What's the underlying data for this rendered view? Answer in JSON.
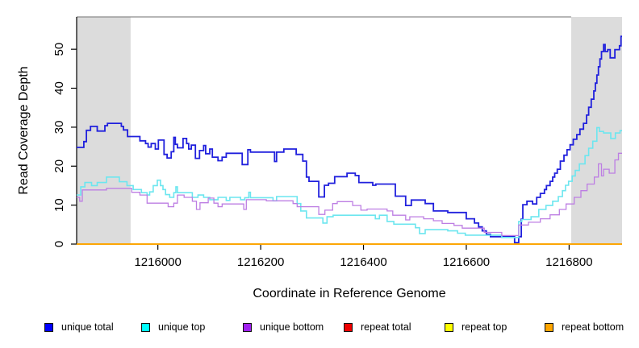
{
  "chart_data": {
    "type": "line",
    "subtype": "step-coverage",
    "title": "",
    "xlabel": "Coordinate in Reference Genome",
    "ylabel": "Read Coverage Depth",
    "xlim": [
      1215842,
      1216903
    ],
    "ylim": [
      0,
      58.3
    ],
    "x_ticks": [
      1216000,
      1216200,
      1216400,
      1216600,
      1216800
    ],
    "y_ticks": [
      0,
      10,
      20,
      30,
      40,
      50
    ],
    "grid": false,
    "legend_position": "bottom",
    "colors": {
      "background": "#ffffff",
      "shaded_region": "#dcdcdc",
      "top_border": "#8a8a8a",
      "axis": "#000000"
    },
    "shaded_regions": [
      {
        "x0": 1215842,
        "x1": 1215947
      },
      {
        "x0": 1216804,
        "x1": 1216903
      }
    ],
    "series": [
      {
        "name": "unique total",
        "line_color": "#2020dd",
        "legend_color": "#0000ff",
        "width": 1.8,
        "points": [
          [
            1215842,
            24.8
          ],
          [
            1215856,
            26.3
          ],
          [
            1215861,
            29.2
          ],
          [
            1215869,
            30.2
          ],
          [
            1215882,
            29.0
          ],
          [
            1215897,
            30.4
          ],
          [
            1215902,
            31.0
          ],
          [
            1215929,
            30.2
          ],
          [
            1215933,
            29.3
          ],
          [
            1215941,
            27.6
          ],
          [
            1215965,
            26.5
          ],
          [
            1215976,
            25.8
          ],
          [
            1215981,
            24.9
          ],
          [
            1215987,
            25.8
          ],
          [
            1215995,
            24.4
          ],
          [
            1216001,
            26.7
          ],
          [
            1216012,
            23.0
          ],
          [
            1216018,
            22.1
          ],
          [
            1216026,
            23.7
          ],
          [
            1216031,
            27.4
          ],
          [
            1216034,
            25.6
          ],
          [
            1216038,
            24.7
          ],
          [
            1216049,
            27.1
          ],
          [
            1216056,
            25.8
          ],
          [
            1216060,
            24.4
          ],
          [
            1216065,
            25.4
          ],
          [
            1216073,
            22.0
          ],
          [
            1216081,
            24.0
          ],
          [
            1216089,
            25.3
          ],
          [
            1216093,
            23.2
          ],
          [
            1216101,
            24.4
          ],
          [
            1216106,
            22.3
          ],
          [
            1216117,
            21.4
          ],
          [
            1216125,
            22.3
          ],
          [
            1216133,
            23.3
          ],
          [
            1216164,
            20.4
          ],
          [
            1216175,
            24.2
          ],
          [
            1216180,
            23.6
          ],
          [
            1216227,
            21.2
          ],
          [
            1216231,
            23.6
          ],
          [
            1216245,
            24.4
          ],
          [
            1216269,
            23.0
          ],
          [
            1216282,
            21.3
          ],
          [
            1216289,
            17.2
          ],
          [
            1216294,
            16.1
          ],
          [
            1216313,
            12.1
          ],
          [
            1216324,
            15.1
          ],
          [
            1216332,
            15.6
          ],
          [
            1216344,
            17.3
          ],
          [
            1216368,
            18.2
          ],
          [
            1216384,
            17.6
          ],
          [
            1216391,
            15.8
          ],
          [
            1216418,
            15.1
          ],
          [
            1216424,
            15.4
          ],
          [
            1216462,
            12.3
          ],
          [
            1216482,
            9.9
          ],
          [
            1216493,
            11.3
          ],
          [
            1216520,
            10.4
          ],
          [
            1216536,
            8.5
          ],
          [
            1216564,
            8.1
          ],
          [
            1216600,
            6.5
          ],
          [
            1216616,
            5.4
          ],
          [
            1216624,
            4.4
          ],
          [
            1216631,
            3.4
          ],
          [
            1216639,
            2.5
          ],
          [
            1216647,
            1.9
          ],
          [
            1216694,
            0.4
          ],
          [
            1216702,
            1.9
          ],
          [
            1216707,
            6.4
          ],
          [
            1216710,
            10.1
          ],
          [
            1216718,
            11.0
          ],
          [
            1216729,
            10.3
          ],
          [
            1216737,
            12.0
          ],
          [
            1216744,
            13.0
          ],
          [
            1216752,
            14.0
          ],
          [
            1216756,
            15.0
          ],
          [
            1216763,
            16.1
          ],
          [
            1216768,
            17.2
          ],
          [
            1216772,
            18.2
          ],
          [
            1216777,
            19.2
          ],
          [
            1216783,
            21.3
          ],
          [
            1216790,
            22.8
          ],
          [
            1216796,
            24.2
          ],
          [
            1216802,
            25.5
          ],
          [
            1216808,
            26.9
          ],
          [
            1216815,
            28.1
          ],
          [
            1216821,
            29.5
          ],
          [
            1216828,
            31.0
          ],
          [
            1216834,
            33.1
          ],
          [
            1216838,
            35.1
          ],
          [
            1216843,
            37.2
          ],
          [
            1216848,
            39.3
          ],
          [
            1216851,
            41.3
          ],
          [
            1216854,
            43.4
          ],
          [
            1216857,
            45.5
          ],
          [
            1216860,
            47.5
          ],
          [
            1216863,
            49.4
          ],
          [
            1216867,
            51.2
          ],
          [
            1216870,
            49.4
          ],
          [
            1216875,
            49.9
          ],
          [
            1216880,
            47.8
          ],
          [
            1216889,
            49.9
          ],
          [
            1216898,
            50.9
          ],
          [
            1216901,
            53.3
          ]
        ]
      },
      {
        "name": "unique top",
        "line_color": "#6ce6ef",
        "legend_color": "#00ffff",
        "width": 1.6,
        "points": [
          [
            1215842,
            12.6
          ],
          [
            1215850,
            14.7
          ],
          [
            1215858,
            15.8
          ],
          [
            1215871,
            15.0
          ],
          [
            1215882,
            15.8
          ],
          [
            1215900,
            17.2
          ],
          [
            1215925,
            16.0
          ],
          [
            1215940,
            15.0
          ],
          [
            1215952,
            14.0
          ],
          [
            1215968,
            13.2
          ],
          [
            1215979,
            12.6
          ],
          [
            1215984,
            13.4
          ],
          [
            1215991,
            15.0
          ],
          [
            1215999,
            16.4
          ],
          [
            1216005,
            15.0
          ],
          [
            1216010,
            14.0
          ],
          [
            1216015,
            12.7
          ],
          [
            1216023,
            12.0
          ],
          [
            1216031,
            13.2
          ],
          [
            1216035,
            14.7
          ],
          [
            1216038,
            13.2
          ],
          [
            1216067,
            12.0
          ],
          [
            1216078,
            12.6
          ],
          [
            1216089,
            12.0
          ],
          [
            1216101,
            11.4
          ],
          [
            1216117,
            12.0
          ],
          [
            1216133,
            11.2
          ],
          [
            1216140,
            12.0
          ],
          [
            1216161,
            11.4
          ],
          [
            1216169,
            11.9
          ],
          [
            1216177,
            13.3
          ],
          [
            1216180,
            11.9
          ],
          [
            1216224,
            11.1
          ],
          [
            1216231,
            12.2
          ],
          [
            1216271,
            10.4
          ],
          [
            1216278,
            8.5
          ],
          [
            1216289,
            6.7
          ],
          [
            1216321,
            5.4
          ],
          [
            1216329,
            7.0
          ],
          [
            1216341,
            7.4
          ],
          [
            1216423,
            6.5
          ],
          [
            1216431,
            7.4
          ],
          [
            1216446,
            5.8
          ],
          [
            1216459,
            5.1
          ],
          [
            1216501,
            4.2
          ],
          [
            1216509,
            2.7
          ],
          [
            1216520,
            3.7
          ],
          [
            1216564,
            3.4
          ],
          [
            1216583,
            2.8
          ],
          [
            1216598,
            2.3
          ],
          [
            1216669,
            1.7
          ],
          [
            1216702,
            5.8
          ],
          [
            1216708,
            6.3
          ],
          [
            1216726,
            7.0
          ],
          [
            1216741,
            8.9
          ],
          [
            1216755,
            9.9
          ],
          [
            1216768,
            11.0
          ],
          [
            1216779,
            12.2
          ],
          [
            1216787,
            13.7
          ],
          [
            1216793,
            15.1
          ],
          [
            1216799,
            16.1
          ],
          [
            1216806,
            17.5
          ],
          [
            1216812,
            18.9
          ],
          [
            1216820,
            20.6
          ],
          [
            1216831,
            22.7
          ],
          [
            1216838,
            24.6
          ],
          [
            1216846,
            26.4
          ],
          [
            1216854,
            29.9
          ],
          [
            1216859,
            28.9
          ],
          [
            1216867,
            28.5
          ],
          [
            1216881,
            27.1
          ],
          [
            1216890,
            28.5
          ],
          [
            1216899,
            29.1
          ]
        ]
      },
      {
        "name": "unique bottom",
        "line_color": "#bd7ee3",
        "legend_color": "#a020f0",
        "width": 1.3,
        "points": [
          [
            1215842,
            12.0
          ],
          [
            1215848,
            11.0
          ],
          [
            1215853,
            13.9
          ],
          [
            1215900,
            14.3
          ],
          [
            1215949,
            13.3
          ],
          [
            1215965,
            12.6
          ],
          [
            1215979,
            10.5
          ],
          [
            1216020,
            9.6
          ],
          [
            1216031,
            10.5
          ],
          [
            1216038,
            12.6
          ],
          [
            1216051,
            12.0
          ],
          [
            1216067,
            11.0
          ],
          [
            1216075,
            8.9
          ],
          [
            1216082,
            10.6
          ],
          [
            1216098,
            11.8
          ],
          [
            1216109,
            10.5
          ],
          [
            1216117,
            9.6
          ],
          [
            1216125,
            10.3
          ],
          [
            1216167,
            8.9
          ],
          [
            1216172,
            11.4
          ],
          [
            1216211,
            11.1
          ],
          [
            1216263,
            10.4
          ],
          [
            1216271,
            9.6
          ],
          [
            1216313,
            7.6
          ],
          [
            1216325,
            8.7
          ],
          [
            1216340,
            10.4
          ],
          [
            1216349,
            10.9
          ],
          [
            1216379,
            9.9
          ],
          [
            1216395,
            8.7
          ],
          [
            1216407,
            9.0
          ],
          [
            1216446,
            8.5
          ],
          [
            1216457,
            7.4
          ],
          [
            1216482,
            6.2
          ],
          [
            1216490,
            7.0
          ],
          [
            1216517,
            6.5
          ],
          [
            1216536,
            6.0
          ],
          [
            1216553,
            5.3
          ],
          [
            1216576,
            4.8
          ],
          [
            1216592,
            4.1
          ],
          [
            1216635,
            3.0
          ],
          [
            1216669,
            2.2
          ],
          [
            1216702,
            4.9
          ],
          [
            1216721,
            5.6
          ],
          [
            1216744,
            6.5
          ],
          [
            1216763,
            7.5
          ],
          [
            1216781,
            8.9
          ],
          [
            1216794,
            10.3
          ],
          [
            1216810,
            12.0
          ],
          [
            1216823,
            13.7
          ],
          [
            1216835,
            15.4
          ],
          [
            1216849,
            17.2
          ],
          [
            1216857,
            20.6
          ],
          [
            1216863,
            17.5
          ],
          [
            1216867,
            19.2
          ],
          [
            1216878,
            18.2
          ],
          [
            1216889,
            21.6
          ],
          [
            1216896,
            23.3
          ]
        ]
      },
      {
        "name": "repeat total",
        "line_color": "#ee0000",
        "legend_color": "#ee0000",
        "width": 1.5,
        "points": [
          [
            1215842,
            0
          ]
        ]
      },
      {
        "name": "repeat top",
        "line_color": "#ffff00",
        "legend_color": "#ffff00",
        "width": 1.5,
        "points": [
          [
            1215842,
            0
          ]
        ]
      },
      {
        "name": "repeat bottom",
        "line_color": "#ffa500",
        "legend_color": "#ffa500",
        "width": 1.8,
        "points": [
          [
            1215842,
            0
          ]
        ]
      }
    ]
  }
}
